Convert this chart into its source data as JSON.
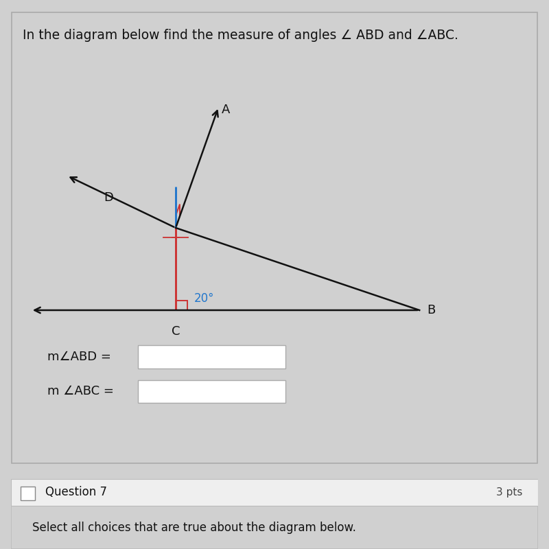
{
  "title": "In the diagram below find the measure of angles ∠ ABD and ∠ABC.",
  "title_fontsize": 13.5,
  "background_color": "#e8e8e8",
  "panel_bg": "#d8d8d8",
  "line_color_black": "#111111",
  "line_color_blue": "#2277cc",
  "line_color_red": "#cc3333",
  "angle_label": "20°",
  "answer_box1_text": "m∠ABD =",
  "answer_box2_text": "m ∠ABC =",
  "q7_text": "Question 7",
  "q7_pts": "3 pts",
  "q7_body": "Select all choices that are true about the diagram below."
}
